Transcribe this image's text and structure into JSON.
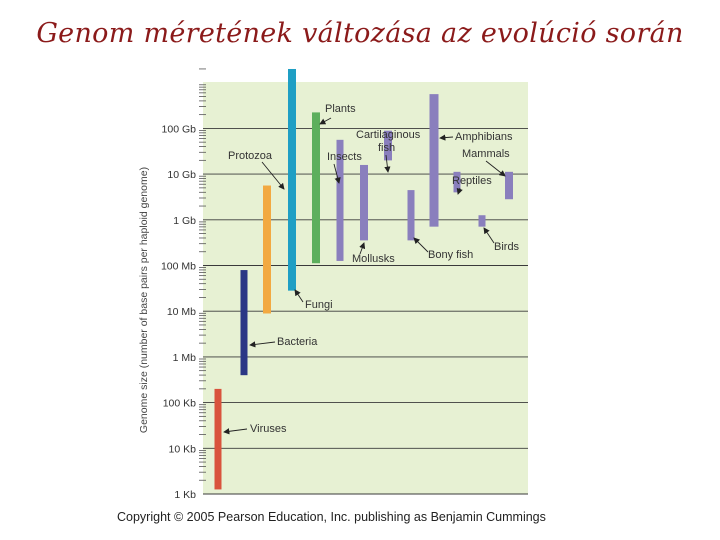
{
  "page": {
    "title": "Genom méretének változása az evolúció során",
    "copyright": "Copyright © 2005 Pearson Education, Inc. publishing as Benjamin Cummings"
  },
  "colors": {
    "plot_background": "#e7f1d3",
    "gridline": "#3a3a3a",
    "leader": "#222222"
  },
  "chart_data": {
    "type": "bar",
    "ylabel": "Genome size (number of base pairs per haploid genome)",
    "y_scale": "log10",
    "y_ticks": [
      {
        "label": "1 Kb",
        "exp": 3
      },
      {
        "label": "10 Kb",
        "exp": 4
      },
      {
        "label": "100 Kb",
        "exp": 5
      },
      {
        "label": "1 Mb",
        "exp": 6
      },
      {
        "label": "10 Mb",
        "exp": 7
      },
      {
        "label": "100 Mb",
        "exp": 8
      },
      {
        "label": "1 Gb",
        "exp": 9
      },
      {
        "label": "10 Gb",
        "exp": 10
      },
      {
        "label": "100 Gb",
        "exp": 11
      }
    ],
    "ylim_exp": [
      3,
      12.4
    ],
    "grid": true,
    "legend": "none",
    "series": [
      {
        "name": "Viruses",
        "low_exp": 3.1,
        "high_exp": 5.3,
        "color": "#d9533c",
        "col": 0
      },
      {
        "name": "Bacteria",
        "low_exp": 5.6,
        "high_exp": 7.9,
        "color": "#2b3785",
        "col": 1
      },
      {
        "name": "Protozoa",
        "low_exp": 6.95,
        "high_exp": 9.75,
        "color": "#f2a941",
        "col": 2
      },
      {
        "name": "Fungi",
        "low_exp": 7.45,
        "high_exp": 12.3,
        "color": "#1f9fc4",
        "col": 3
      },
      {
        "name": "Plants",
        "low_exp": 8.05,
        "high_exp": 11.35,
        "color": "#5daf5d",
        "col": 4
      },
      {
        "name": "Insects",
        "low_exp": 8.1,
        "high_exp": 10.75,
        "color": "#8a7fbd",
        "col": 5
      },
      {
        "name": "Mollusks",
        "low_exp": 8.55,
        "high_exp": 10.2,
        "color": "#8a7fbd",
        "col": 6
      },
      {
        "name": "Cartilaginous fish",
        "low_exp": 10.3,
        "high_exp": 10.95,
        "color": "#8a7fbd",
        "col": 7
      },
      {
        "name": "Bony fish",
        "low_exp": 8.55,
        "high_exp": 9.65,
        "color": "#8a7fbd",
        "col": 8
      },
      {
        "name": "Amphibians",
        "low_exp": 8.85,
        "high_exp": 11.75,
        "color": "#8a7fbd",
        "col": 9
      },
      {
        "name": "Reptiles",
        "low_exp": 9.6,
        "high_exp": 10.05,
        "color": "#8a7fbd",
        "col": 10
      },
      {
        "name": "Birds",
        "low_exp": 8.85,
        "high_exp": 9.1,
        "color": "#8a7fbd",
        "col": 11
      },
      {
        "name": "Mammals",
        "low_exp": 9.45,
        "high_exp": 10.05,
        "color": "#8a7fbd",
        "col": 12
      }
    ]
  }
}
